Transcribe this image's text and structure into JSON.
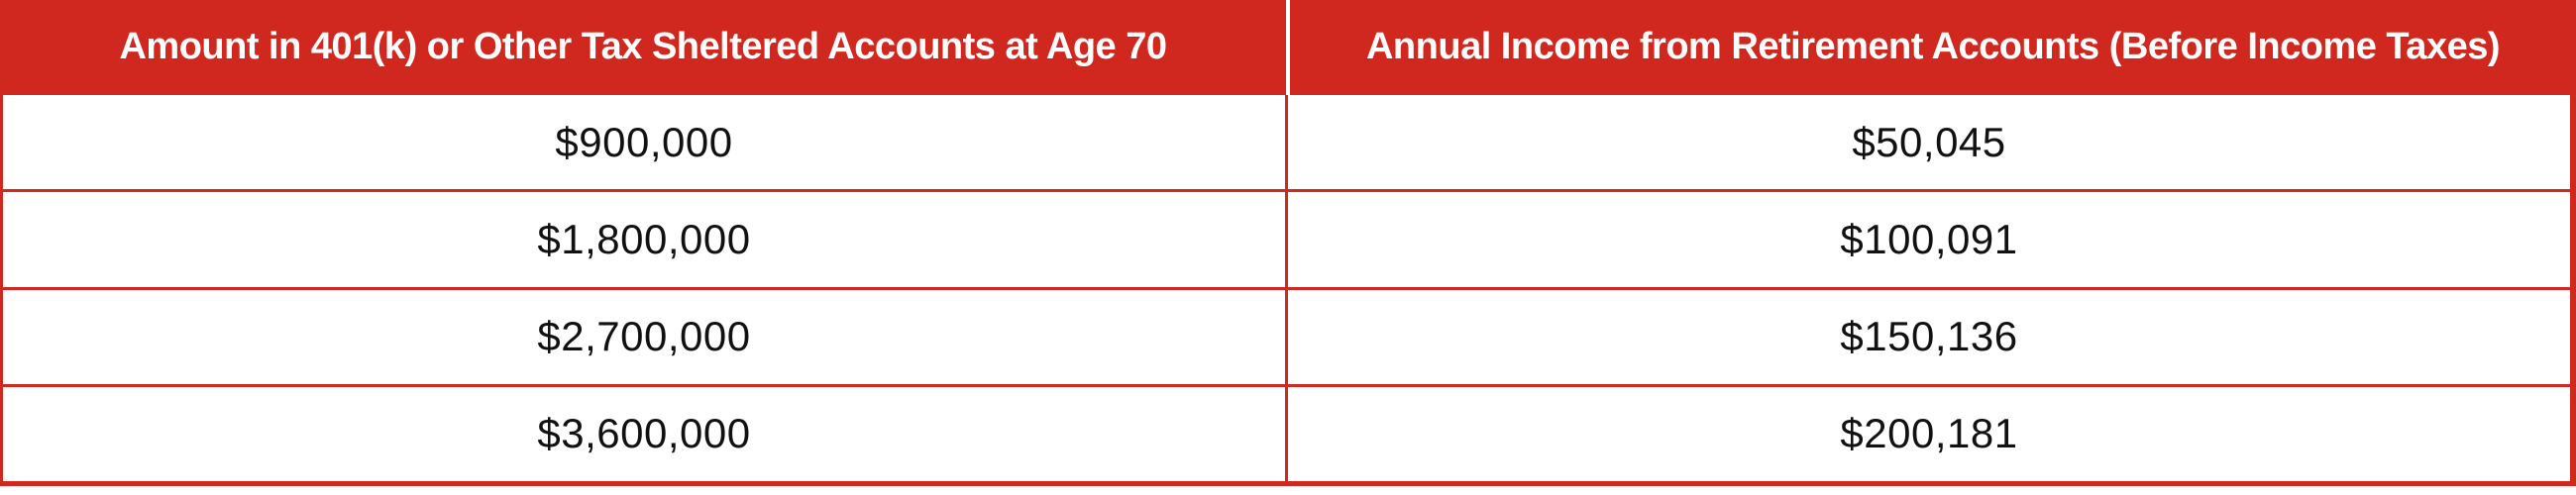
{
  "chart_data": {
    "type": "table",
    "title": "",
    "columns": [
      "Amount in 401(k) or Other Tax Sheltered Accounts at Age 70",
      "Annual Income from Retirement Accounts (Before Income Taxes)"
    ],
    "rows": [
      [
        "$900,000",
        "$50,045"
      ],
      [
        "$1,800,000",
        "$100,091"
      ],
      [
        "$2,700,000",
        "$150,136"
      ],
      [
        "$3,600,000",
        "$200,181"
      ]
    ],
    "numeric_rows": [
      [
        900000,
        50045
      ],
      [
        1800000,
        100091
      ],
      [
        2700000,
        150136
      ],
      [
        3600000,
        200181
      ]
    ],
    "layout": {
      "header_position": "top",
      "column_count": 2,
      "row_count": 4,
      "gridlines": true
    }
  },
  "colors": {
    "header_background": "#d0281e",
    "header_text": "#ffffff",
    "border_red": "#d0281e",
    "header_divider": "#ffffff",
    "body_background": "#ffffff",
    "body_text": "#111111"
  }
}
